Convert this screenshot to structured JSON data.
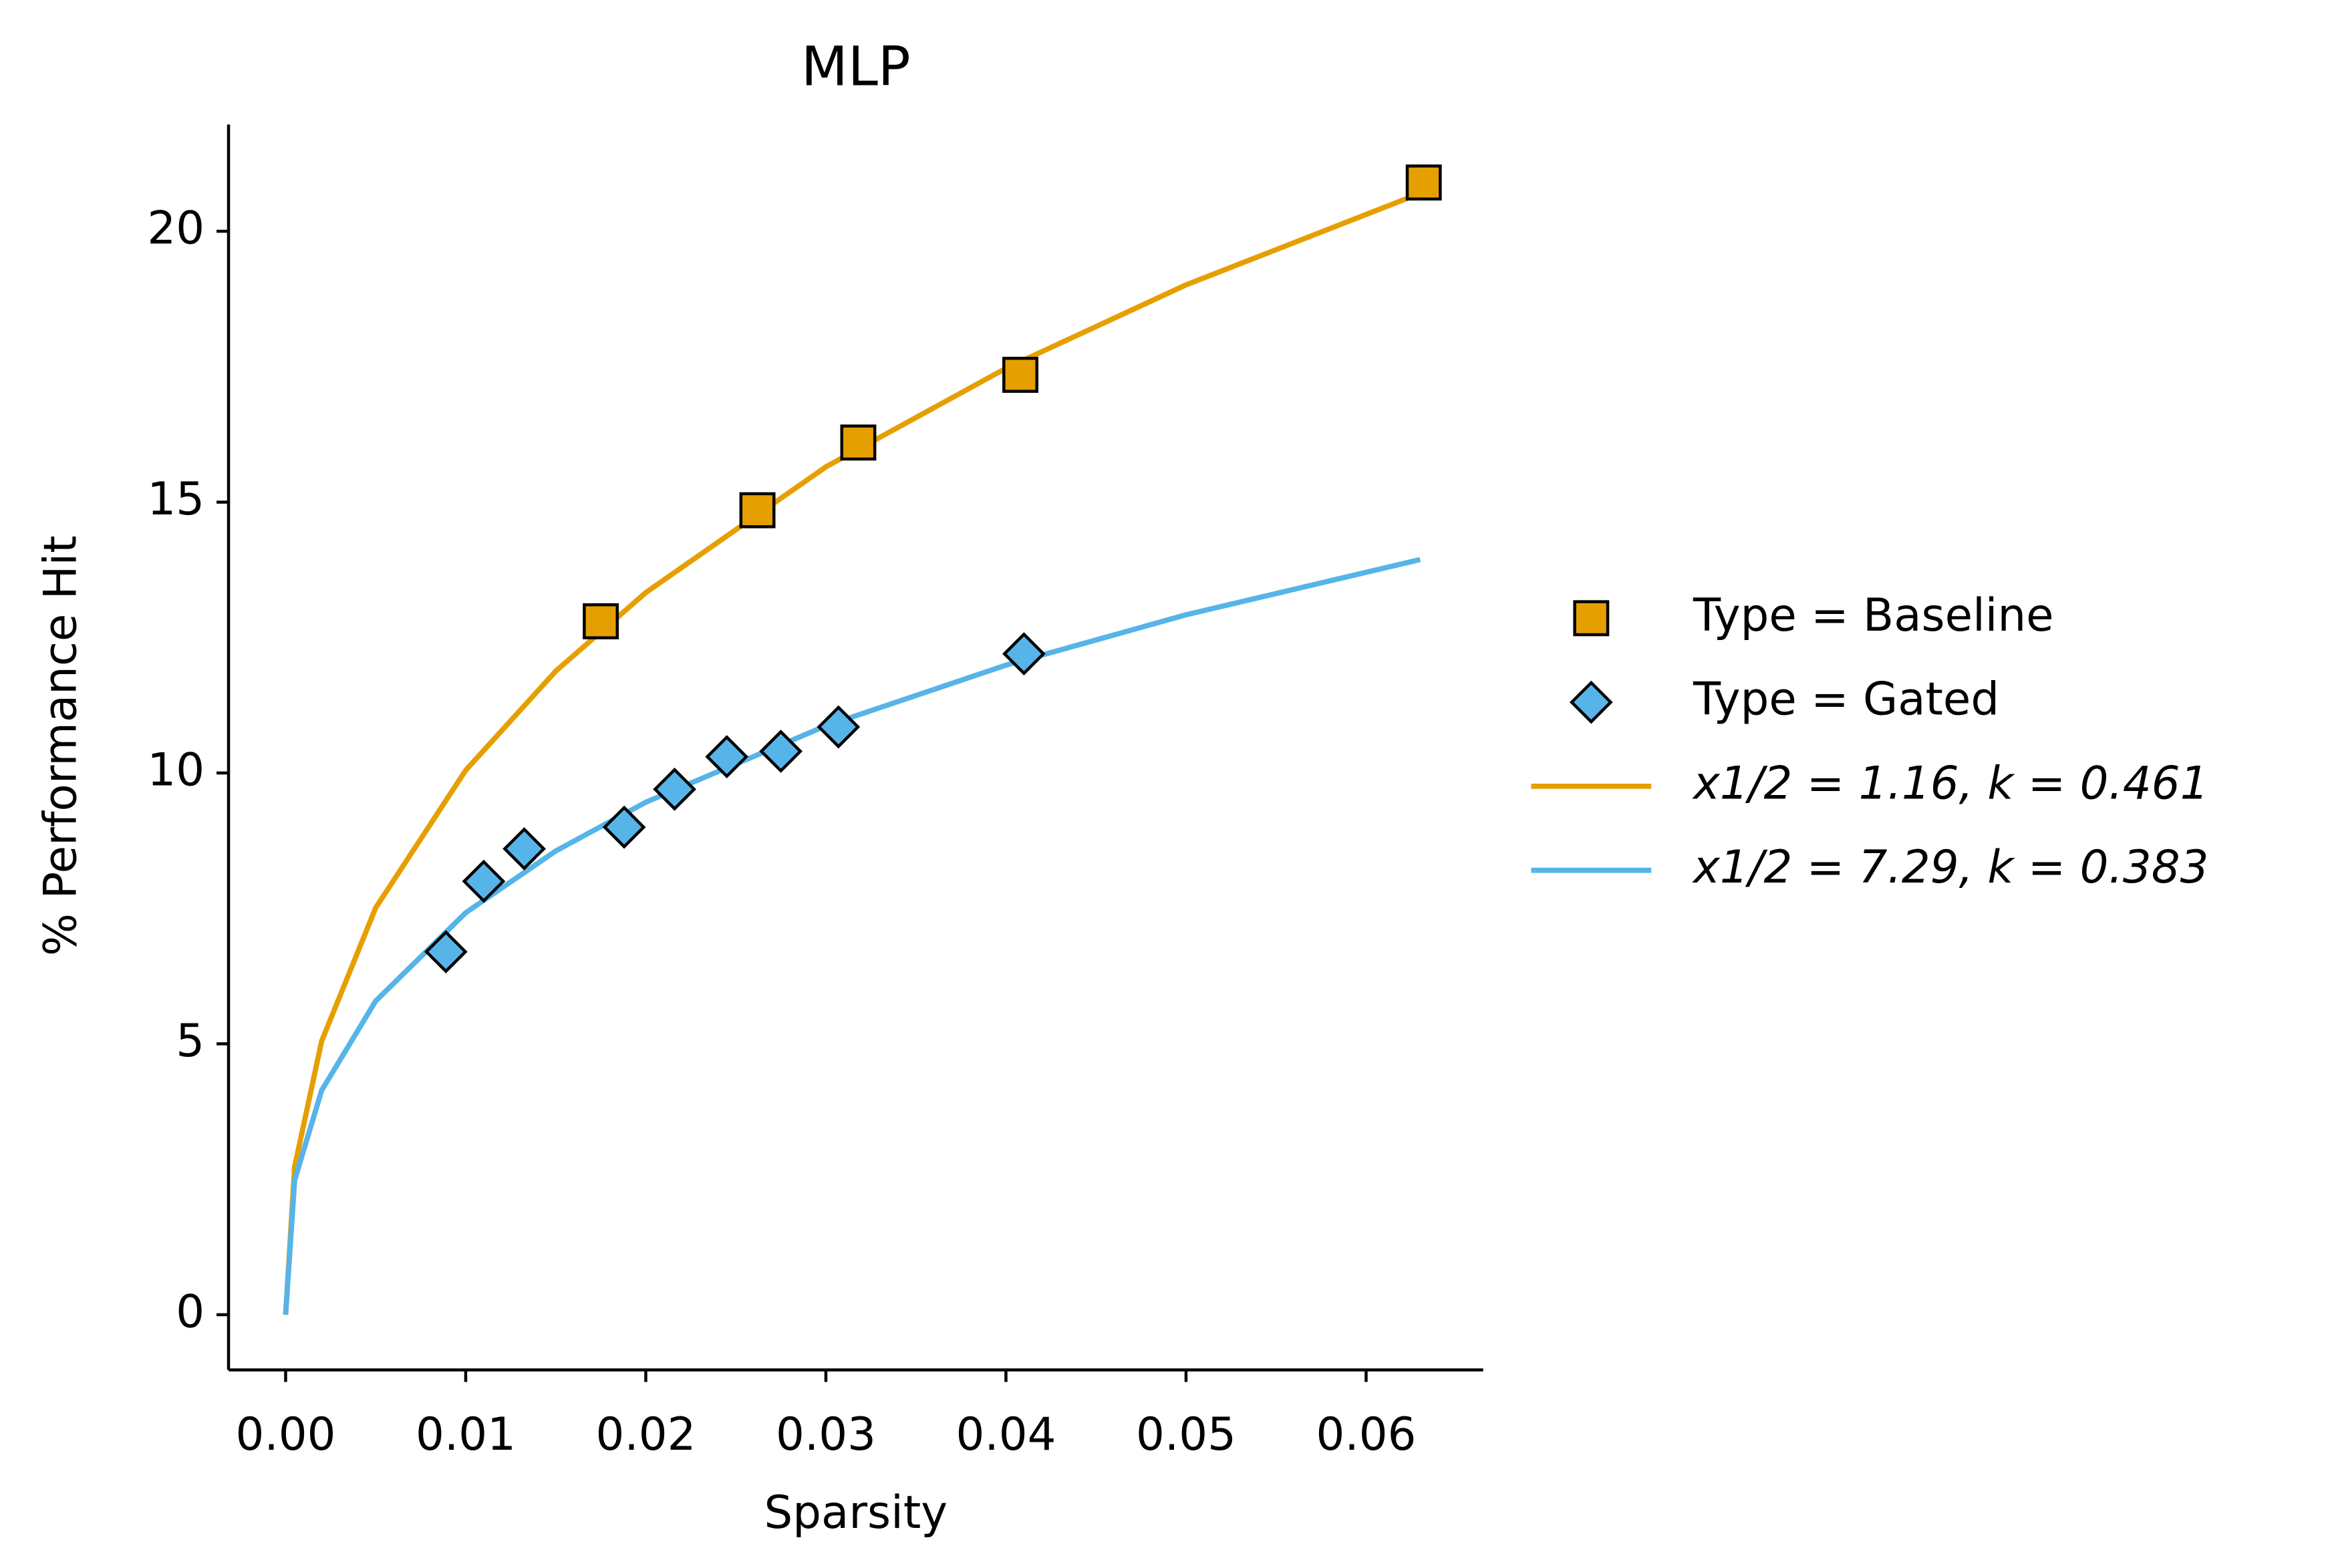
{
  "chart_data": {
    "type": "scatter",
    "title": "MLP",
    "x_label": "Sparsity",
    "y_label": "% Performance Hit",
    "xlim": [
      -0.00317,
      0.0665
    ],
    "ylim": [
      -1.02,
      21.97
    ],
    "xticks": [
      {
        "value": 0,
        "label": "0.00"
      },
      0.01,
      0.02,
      0.03,
      0.04,
      0.05,
      0.06
    ],
    "yticks": [
      0,
      5,
      10,
      15,
      20
    ],
    "legend": "right",
    "series": [
      {
        "name": "Type = Baseline",
        "color": "#E69F00",
        "marker": "square",
        "x": [
          0.0175,
          0.0262,
          0.0318,
          0.0408,
          0.0632
        ],
        "values": [
          12.8,
          14.85,
          16.1,
          17.35,
          20.9
        ]
      },
      {
        "name": "Type = Gated",
        "color": "#56B4E9",
        "marker": "diamond",
        "x": [
          0.0089,
          0.011,
          0.01325,
          0.0188,
          0.0216,
          0.0245,
          0.0275,
          0.0307,
          0.041
        ],
        "values": [
          6.7,
          8.0,
          8.6,
          9.0,
          9.7,
          10.3,
          10.4,
          10.85,
          12.2
        ]
      },
      {
        "name": "x1/2 = 1.16,  k = 0.461",
        "color": "#E69F00",
        "marker": "line",
        "x": [
          0,
          0.0005,
          0.002,
          0.005,
          0.01,
          0.015,
          0.02,
          0.03,
          0.04,
          0.05,
          0.063
        ],
        "values": [
          0,
          2.73,
          5.05,
          7.51,
          10.05,
          11.88,
          13.33,
          15.65,
          17.47,
          19.01,
          20.7
        ]
      },
      {
        "name": "x1/2 = 7.29,  k = 0.383",
        "color": "#56B4E9",
        "marker": "line",
        "x": [
          0,
          0.0005,
          0.002,
          0.005,
          0.01,
          0.015,
          0.02,
          0.03,
          0.04,
          0.05,
          0.063
        ],
        "values": [
          0,
          2.48,
          4.14,
          5.79,
          7.42,
          8.56,
          9.46,
          10.87,
          11.99,
          12.92,
          13.94
        ]
      }
    ]
  }
}
